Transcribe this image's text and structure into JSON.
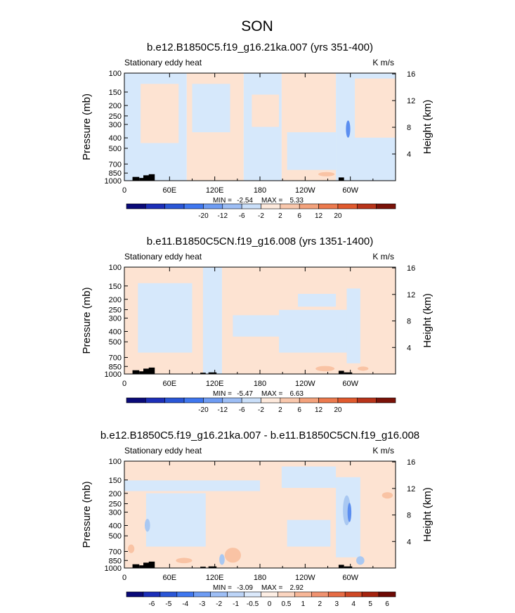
{
  "figure": {
    "title": "SON",
    "colors": {
      "light_blue": "#d6e8fb",
      "light_orange": "#fde3d2",
      "mid_blue": "#a9c8f2",
      "mid_orange": "#f9c3a4",
      "blue": "#5b8ef0",
      "orange": "#ef8a62",
      "terrain": "#000000"
    }
  },
  "chart_data": [
    {
      "type": "heatmap",
      "title": "b.e12.B1850C5.f19_g16.21ka.007 (yrs 351-400)",
      "left_label": "Stationary eddy heat",
      "units": "K m/s",
      "ylabel": "Pressure (mb)",
      "ylabel_right": "Height (km)",
      "x_ticks": [
        "0",
        "60E",
        "120E",
        "180",
        "120W",
        "60W"
      ],
      "y_ticks": [
        "100",
        "150",
        "200",
        "250",
        "300",
        "400",
        "500",
        "700",
        "850",
        "1000"
      ],
      "height_ticks": [
        "16",
        "12",
        "8",
        "4"
      ],
      "stats": {
        "min": "-2.54",
        "max": "5.33"
      },
      "min_label": "MIN =",
      "max_label": "MAX =",
      "colorbar": {
        "labels": [
          "-20",
          "-12",
          "-6",
          "-2",
          "2",
          "6",
          "12",
          "20"
        ],
        "colors": [
          "#0a0a78",
          "#1c2fb8",
          "#2a56d6",
          "#3f77ef",
          "#6e9cf3",
          "#9dbef5",
          "#cadff9",
          "#fde9dc",
          "#f9c8ad",
          "#f3a27c",
          "#ec7a4e",
          "#e05a2e",
          "#b8341a",
          "#7a1208"
        ]
      }
    },
    {
      "type": "heatmap",
      "title": "b.e11.B1850C5CN.f19_g16.008 (yrs 1351-1400)",
      "left_label": "Stationary eddy heat",
      "units": "K m/s",
      "ylabel": "Pressure (mb)",
      "ylabel_right": "Height (km)",
      "x_ticks": [
        "0",
        "60E",
        "120E",
        "180",
        "120W",
        "60W"
      ],
      "y_ticks": [
        "100",
        "150",
        "200",
        "250",
        "300",
        "400",
        "500",
        "700",
        "850",
        "1000"
      ],
      "height_ticks": [
        "16",
        "12",
        "8",
        "4"
      ],
      "stats": {
        "min": "-5.47",
        "max": "6.63"
      },
      "min_label": "MIN =",
      "max_label": "MAX =",
      "colorbar": {
        "labels": [
          "-20",
          "-12",
          "-6",
          "-2",
          "2",
          "6",
          "12",
          "20"
        ],
        "colors": [
          "#0a0a78",
          "#1c2fb8",
          "#2a56d6",
          "#3f77ef",
          "#6e9cf3",
          "#9dbef5",
          "#cadff9",
          "#fde9dc",
          "#f9c8ad",
          "#f3a27c",
          "#ec7a4e",
          "#e05a2e",
          "#b8341a",
          "#7a1208"
        ]
      }
    },
    {
      "type": "heatmap",
      "title": "b.e12.B1850C5.f19_g16.21ka.007 - b.e11.B1850C5CN.f19_g16.008",
      "left_label": "Stationary eddy heat",
      "units": "K m/s",
      "ylabel": "Pressure (mb)",
      "ylabel_right": "Height (km)",
      "x_ticks": [
        "0",
        "60E",
        "120E",
        "180",
        "120W",
        "60W"
      ],
      "y_ticks": [
        "100",
        "150",
        "200",
        "250",
        "300",
        "400",
        "500",
        "700",
        "850",
        "1000"
      ],
      "height_ticks": [
        "16",
        "12",
        "8",
        "4"
      ],
      "stats": {
        "min": "-3.09",
        "max": "2.92"
      },
      "min_label": "MIN =",
      "max_label": "MAX =",
      "colorbar": {
        "labels": [
          "-6",
          "-5",
          "-4",
          "-3",
          "-2",
          "-1",
          "-0.5",
          "0",
          "0.5",
          "1",
          "2",
          "3",
          "4",
          "5",
          "6"
        ],
        "colors": [
          "#0a0a78",
          "#1c2fb8",
          "#2a56d6",
          "#3f77ef",
          "#6e9cf3",
          "#9dbef5",
          "#bcd4f7",
          "#dbe9fb",
          "#fdeee4",
          "#fbd5c0",
          "#f7b697",
          "#f09270",
          "#e66c45",
          "#cf4825",
          "#a5230f",
          "#6e0a05"
        ]
      }
    }
  ]
}
